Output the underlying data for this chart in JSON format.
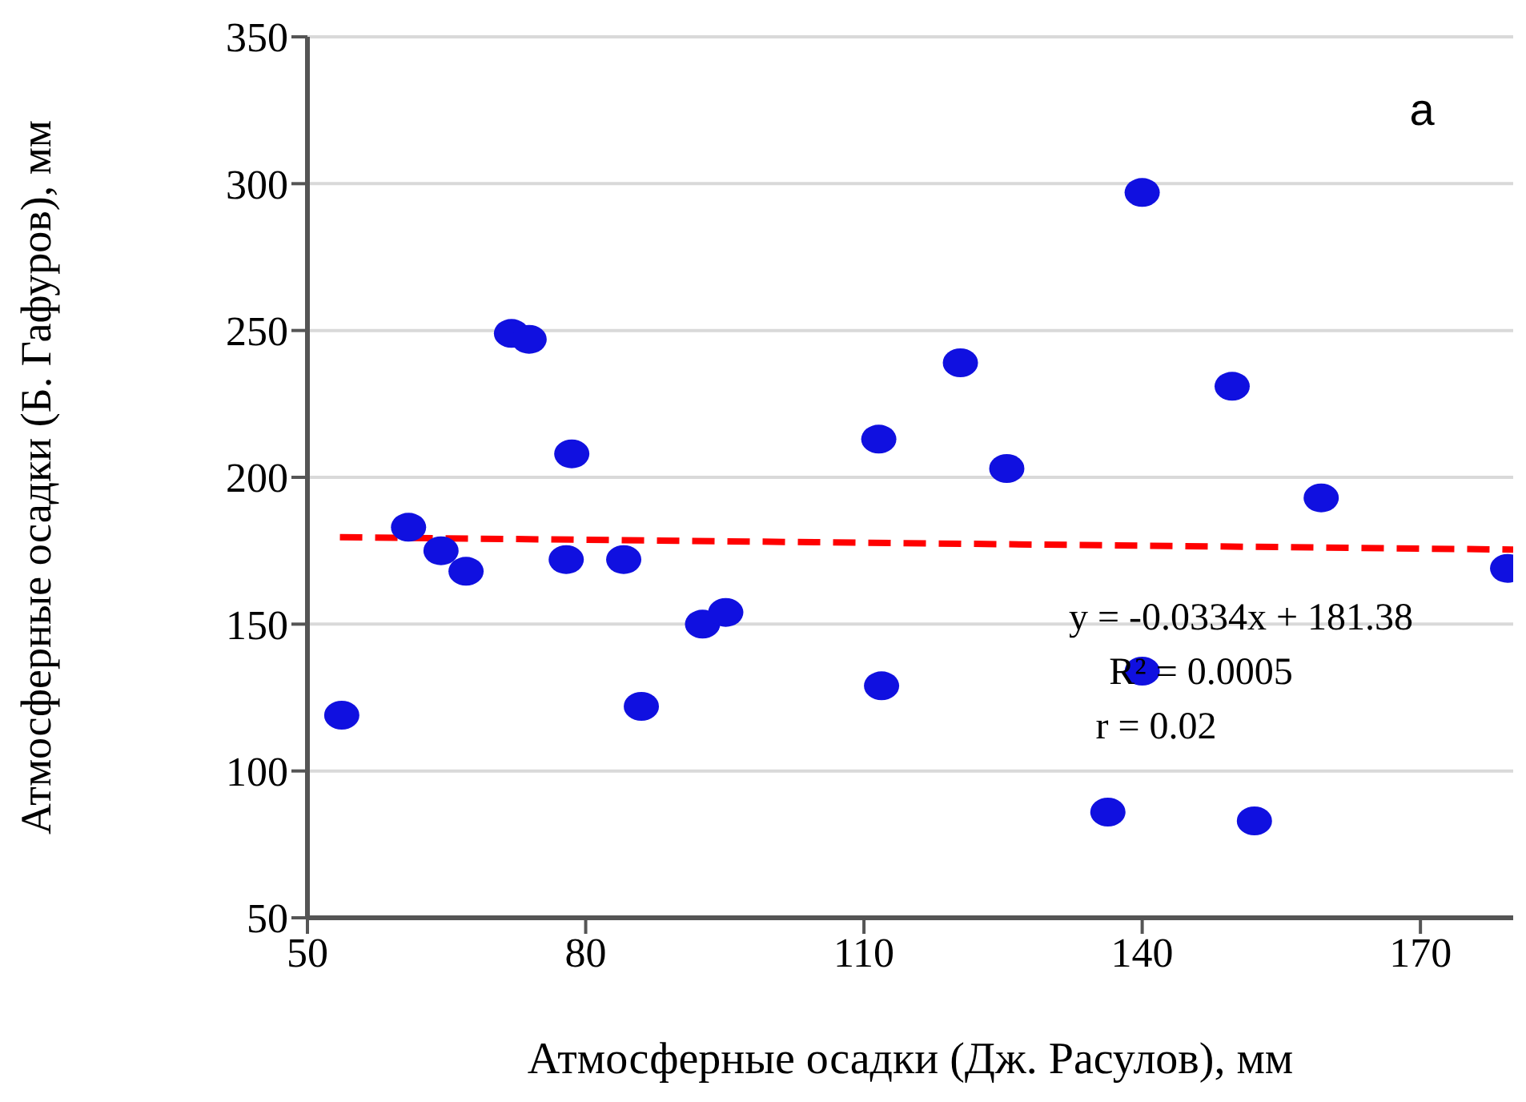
{
  "chart_data": {
    "type": "scatter",
    "xlabel": "Атмосферные осадки (Дж. Расулов), мм",
    "ylabel": "Атмосферные осадки (Б. Гафуров), мм",
    "xlim": [
      50,
      180
    ],
    "xticks": [
      50,
      80,
      110,
      140,
      170
    ],
    "ylim": [
      50,
      350
    ],
    "yticks": [
      50,
      100,
      150,
      200,
      250,
      300,
      350
    ],
    "grid": "y",
    "marker": "circle",
    "series": [
      {
        "color": "#1010e0",
        "x": [
          53.7,
          60.9,
          64.4,
          67.1,
          72.0,
          73.9,
          78.5,
          77.9,
          84.1,
          86.0,
          92.6,
          95.1,
          111.6,
          111.9,
          120.4,
          125.4,
          140.0,
          140.0,
          136.3,
          149.7,
          152.1,
          159.3,
          179.4
        ],
        "values": [
          119,
          183,
          175,
          168,
          249,
          247,
          208,
          172,
          172,
          122,
          150,
          154,
          213,
          129,
          239,
          203,
          297,
          134,
          86,
          231,
          83,
          193,
          169
        ]
      },
      {
        "type": "line",
        "color": "#ff0000",
        "line_style": "dashed",
        "marker": "none",
        "x": [
          53.5,
          180
        ],
        "values": [
          179.6,
          175.4
        ]
      }
    ],
    "annotations": [
      "a",
      "y = -0.0334x + 181.38",
      "R² = 0.0005",
      "r = 0.02"
    ]
  }
}
